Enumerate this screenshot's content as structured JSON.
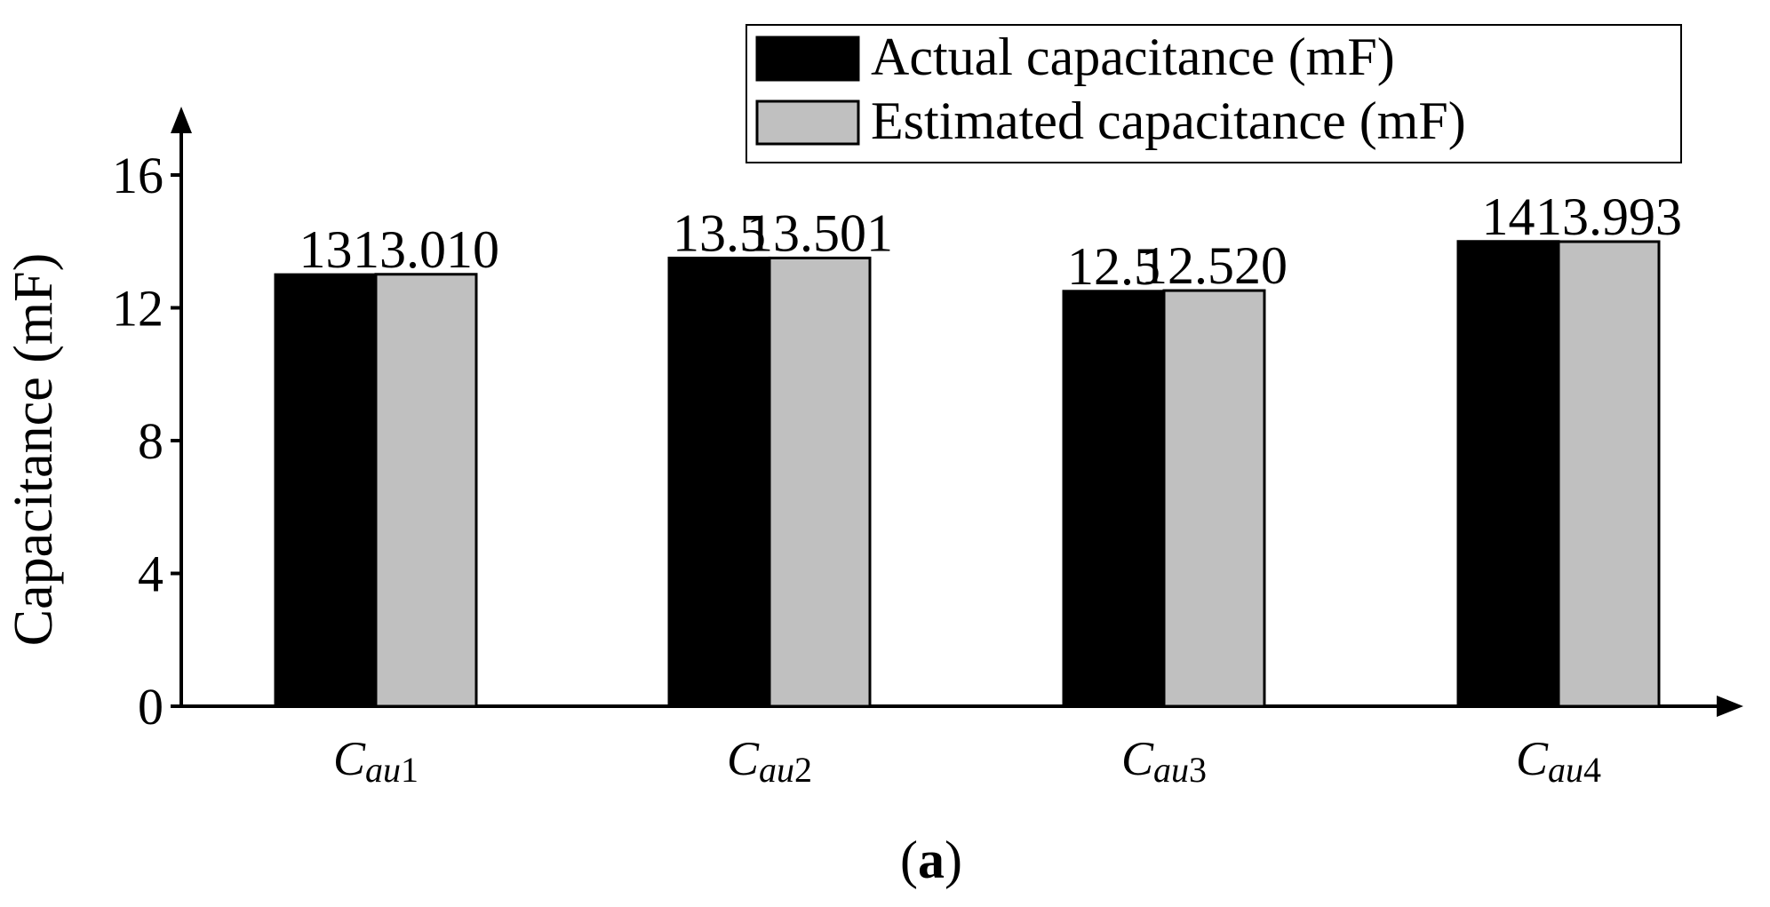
{
  "chart_data": {
    "type": "bar",
    "categories": [
      {
        "base": "C",
        "sub": "au",
        "num": "1"
      },
      {
        "base": "C",
        "sub": "au",
        "num": "2"
      },
      {
        "base": "C",
        "sub": "au",
        "num": "3"
      },
      {
        "base": "C",
        "sub": "au",
        "num": "4"
      }
    ],
    "series": [
      {
        "name": "Actual capacitance (mF)",
        "color": "#000000",
        "values": [
          13,
          13.5,
          12.5,
          14
        ],
        "labels": [
          "13",
          "13.5",
          "12.5",
          "14"
        ]
      },
      {
        "name": "Estimated capacitance (mF)",
        "color": "#c0c0c0",
        "values": [
          13.01,
          13.501,
          12.52,
          13.993
        ],
        "labels": [
          "13.010",
          "13.501",
          "12.520",
          "13.993"
        ]
      }
    ],
    "ylabel": "Capacitance (mF)",
    "xlabel": "",
    "ylim": [
      0,
      16
    ],
    "yticks": [
      0,
      4,
      8,
      12,
      16
    ],
    "ytick_labels": [
      "0",
      "4",
      "8",
      "12",
      "16"
    ],
    "legend_position": "top-right",
    "grid": false
  },
  "caption": {
    "open": "(",
    "letter": "a",
    "close": ")"
  }
}
